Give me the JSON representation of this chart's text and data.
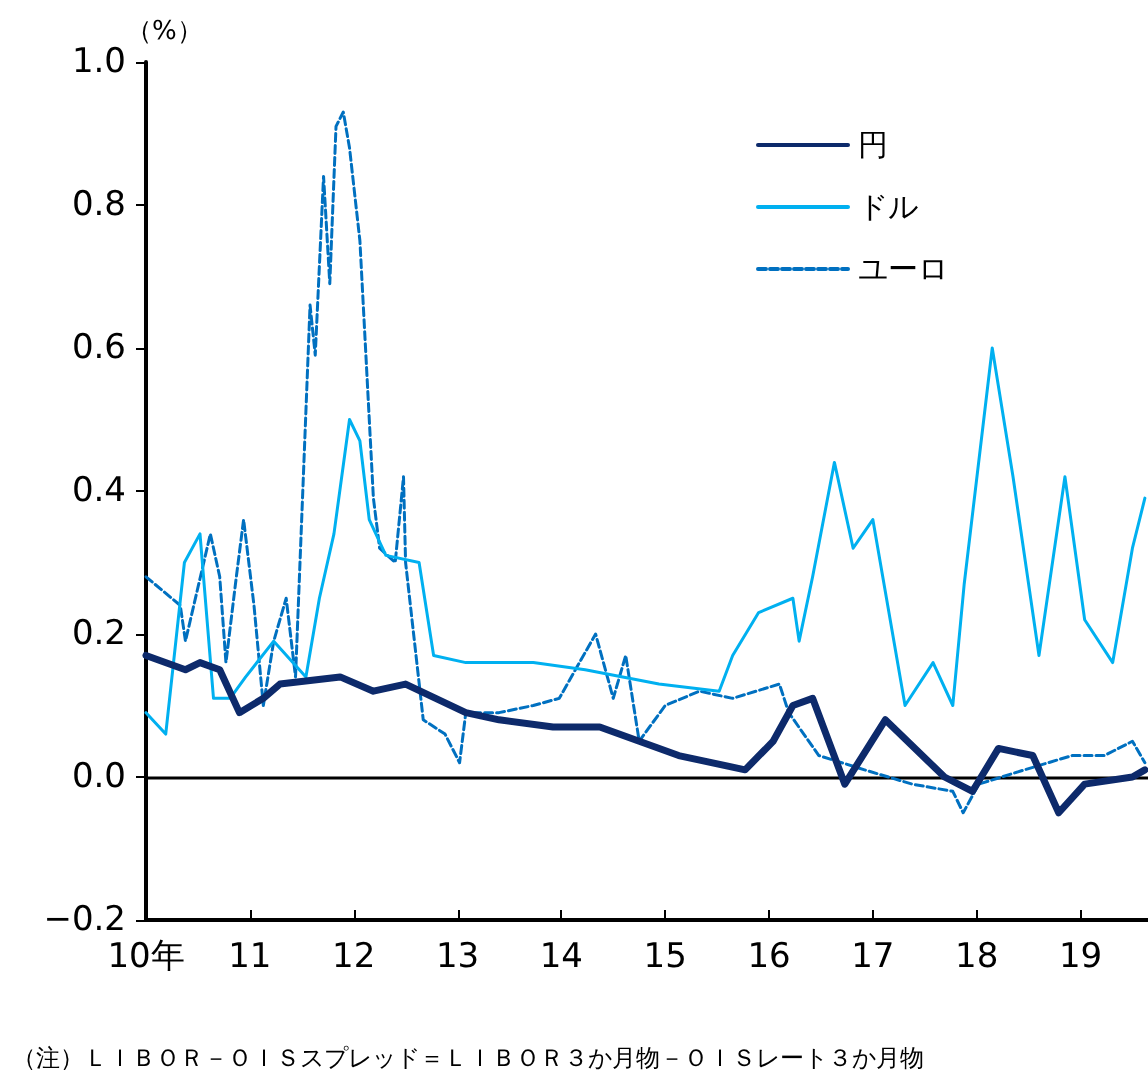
{
  "chart_data": {
    "type": "line",
    "ylabel": "（%）",
    "annotations": [
      "（注）ＬＩＢＯＲ－ＯＩＳスプレッド＝ＬＩＢＯＲ３か月物－ＯＩＳレート３か月物"
    ],
    "xlim": [
      10,
      19.65
    ],
    "xticks": [
      {
        "value": 10,
        "label": "10年"
      },
      11,
      12,
      13,
      14,
      15,
      16,
      17,
      18,
      19
    ],
    "ylim": [
      -0.2,
      1.0
    ],
    "yticks": [
      {
        "value": -0.2,
        "label": "−0.2"
      },
      {
        "value": 0,
        "label": "0.0"
      },
      {
        "value": 0.2,
        "label": "0.2"
      },
      {
        "value": 0.4,
        "label": "0.4"
      },
      {
        "value": 0.6,
        "label": "0.6"
      },
      {
        "value": 0.8,
        "label": "0.8"
      },
      {
        "value": 1.0,
        "label": "1.0"
      }
    ],
    "ref_lines": [
      {
        "axis": "y",
        "value": 0,
        "color": "#000000"
      }
    ],
    "grid": false,
    "legend": "top right",
    "marker": "none",
    "series": [
      {
        "name": "円",
        "color": "#0d2a6b",
        "line_style": "solid",
        "x": [
          10,
          10.38,
          10.52,
          10.71,
          10.9,
          11.13,
          11.29,
          11.87,
          12.19,
          12.5,
          13.08,
          13.4,
          13.92,
          14.37,
          14.75,
          15.13,
          15.77,
          16.04,
          16.23,
          16.42,
          16.73,
          17.12,
          17.69,
          17.96,
          18.21,
          18.54,
          18.79,
          19.04,
          19.5,
          19.62
        ],
        "values": [
          0.17,
          0.15,
          0.16,
          0.15,
          0.09,
          0.11,
          0.13,
          0.14,
          0.12,
          0.13,
          0.09,
          0.08,
          0.07,
          0.07,
          0.05,
          0.03,
          0.01,
          0.05,
          0.1,
          0.11,
          -0.01,
          0.08,
          0.0,
          -0.02,
          0.04,
          0.03,
          -0.05,
          -0.01,
          0.0,
          0.01
        ]
      },
      {
        "name": "ドル",
        "color": "#00b0f0",
        "line_style": "solid",
        "x": [
          10,
          10.19,
          10.37,
          10.52,
          10.65,
          10.81,
          10.96,
          11.23,
          11.54,
          11.67,
          11.81,
          11.96,
          12.06,
          12.15,
          12.31,
          12.63,
          12.77,
          13.08,
          13.35,
          13.73,
          14.23,
          14.94,
          15.52,
          15.65,
          15.9,
          16.23,
          16.29,
          16.42,
          16.63,
          16.81,
          17.0,
          17.31,
          17.58,
          17.77,
          17.88,
          18.15,
          18.35,
          18.6,
          18.85,
          19.04,
          19.31,
          19.5,
          19.62
        ],
        "values": [
          0.09,
          0.06,
          0.3,
          0.34,
          0.11,
          0.11,
          0.14,
          0.19,
          0.14,
          0.25,
          0.34,
          0.5,
          0.47,
          0.36,
          0.31,
          0.3,
          0.17,
          0.16,
          0.16,
          0.16,
          0.15,
          0.13,
          0.12,
          0.17,
          0.23,
          0.25,
          0.19,
          0.28,
          0.44,
          0.32,
          0.36,
          0.1,
          0.16,
          0.1,
          0.27,
          0.6,
          0.42,
          0.17,
          0.42,
          0.22,
          0.16,
          0.32,
          0.39
        ]
      },
      {
        "name": "ユーロ",
        "color": "#0070c0",
        "line_style": "dashed",
        "x": [
          10,
          10.33,
          10.38,
          10.62,
          10.71,
          10.77,
          10.87,
          10.94,
          11.04,
          11.13,
          11.23,
          11.35,
          11.44,
          11.58,
          11.63,
          11.71,
          11.77,
          11.83,
          11.9,
          11.96,
          12.06,
          12.19,
          12.25,
          12.4,
          12.48,
          12.5,
          12.67,
          12.88,
          13.02,
          13.08,
          13.4,
          13.73,
          13.98,
          14.33,
          14.5,
          14.62,
          14.75,
          15.0,
          15.33,
          15.65,
          16.1,
          16.19,
          16.48,
          16.92,
          17.38,
          17.77,
          17.87,
          18.02,
          18.46,
          18.92,
          19.23,
          19.5,
          19.62
        ],
        "values": [
          0.28,
          0.24,
          0.19,
          0.34,
          0.28,
          0.16,
          0.28,
          0.36,
          0.24,
          0.1,
          0.19,
          0.25,
          0.14,
          0.66,
          0.59,
          0.84,
          0.69,
          0.91,
          0.93,
          0.88,
          0.75,
          0.39,
          0.32,
          0.3,
          0.42,
          0.3,
          0.08,
          0.06,
          0.02,
          0.09,
          0.09,
          0.1,
          0.11,
          0.2,
          0.11,
          0.17,
          0.05,
          0.1,
          0.12,
          0.11,
          0.13,
          0.09,
          0.03,
          0.01,
          -0.01,
          -0.02,
          -0.05,
          -0.01,
          0.01,
          0.03,
          0.03,
          0.05,
          0.02
        ]
      }
    ]
  }
}
